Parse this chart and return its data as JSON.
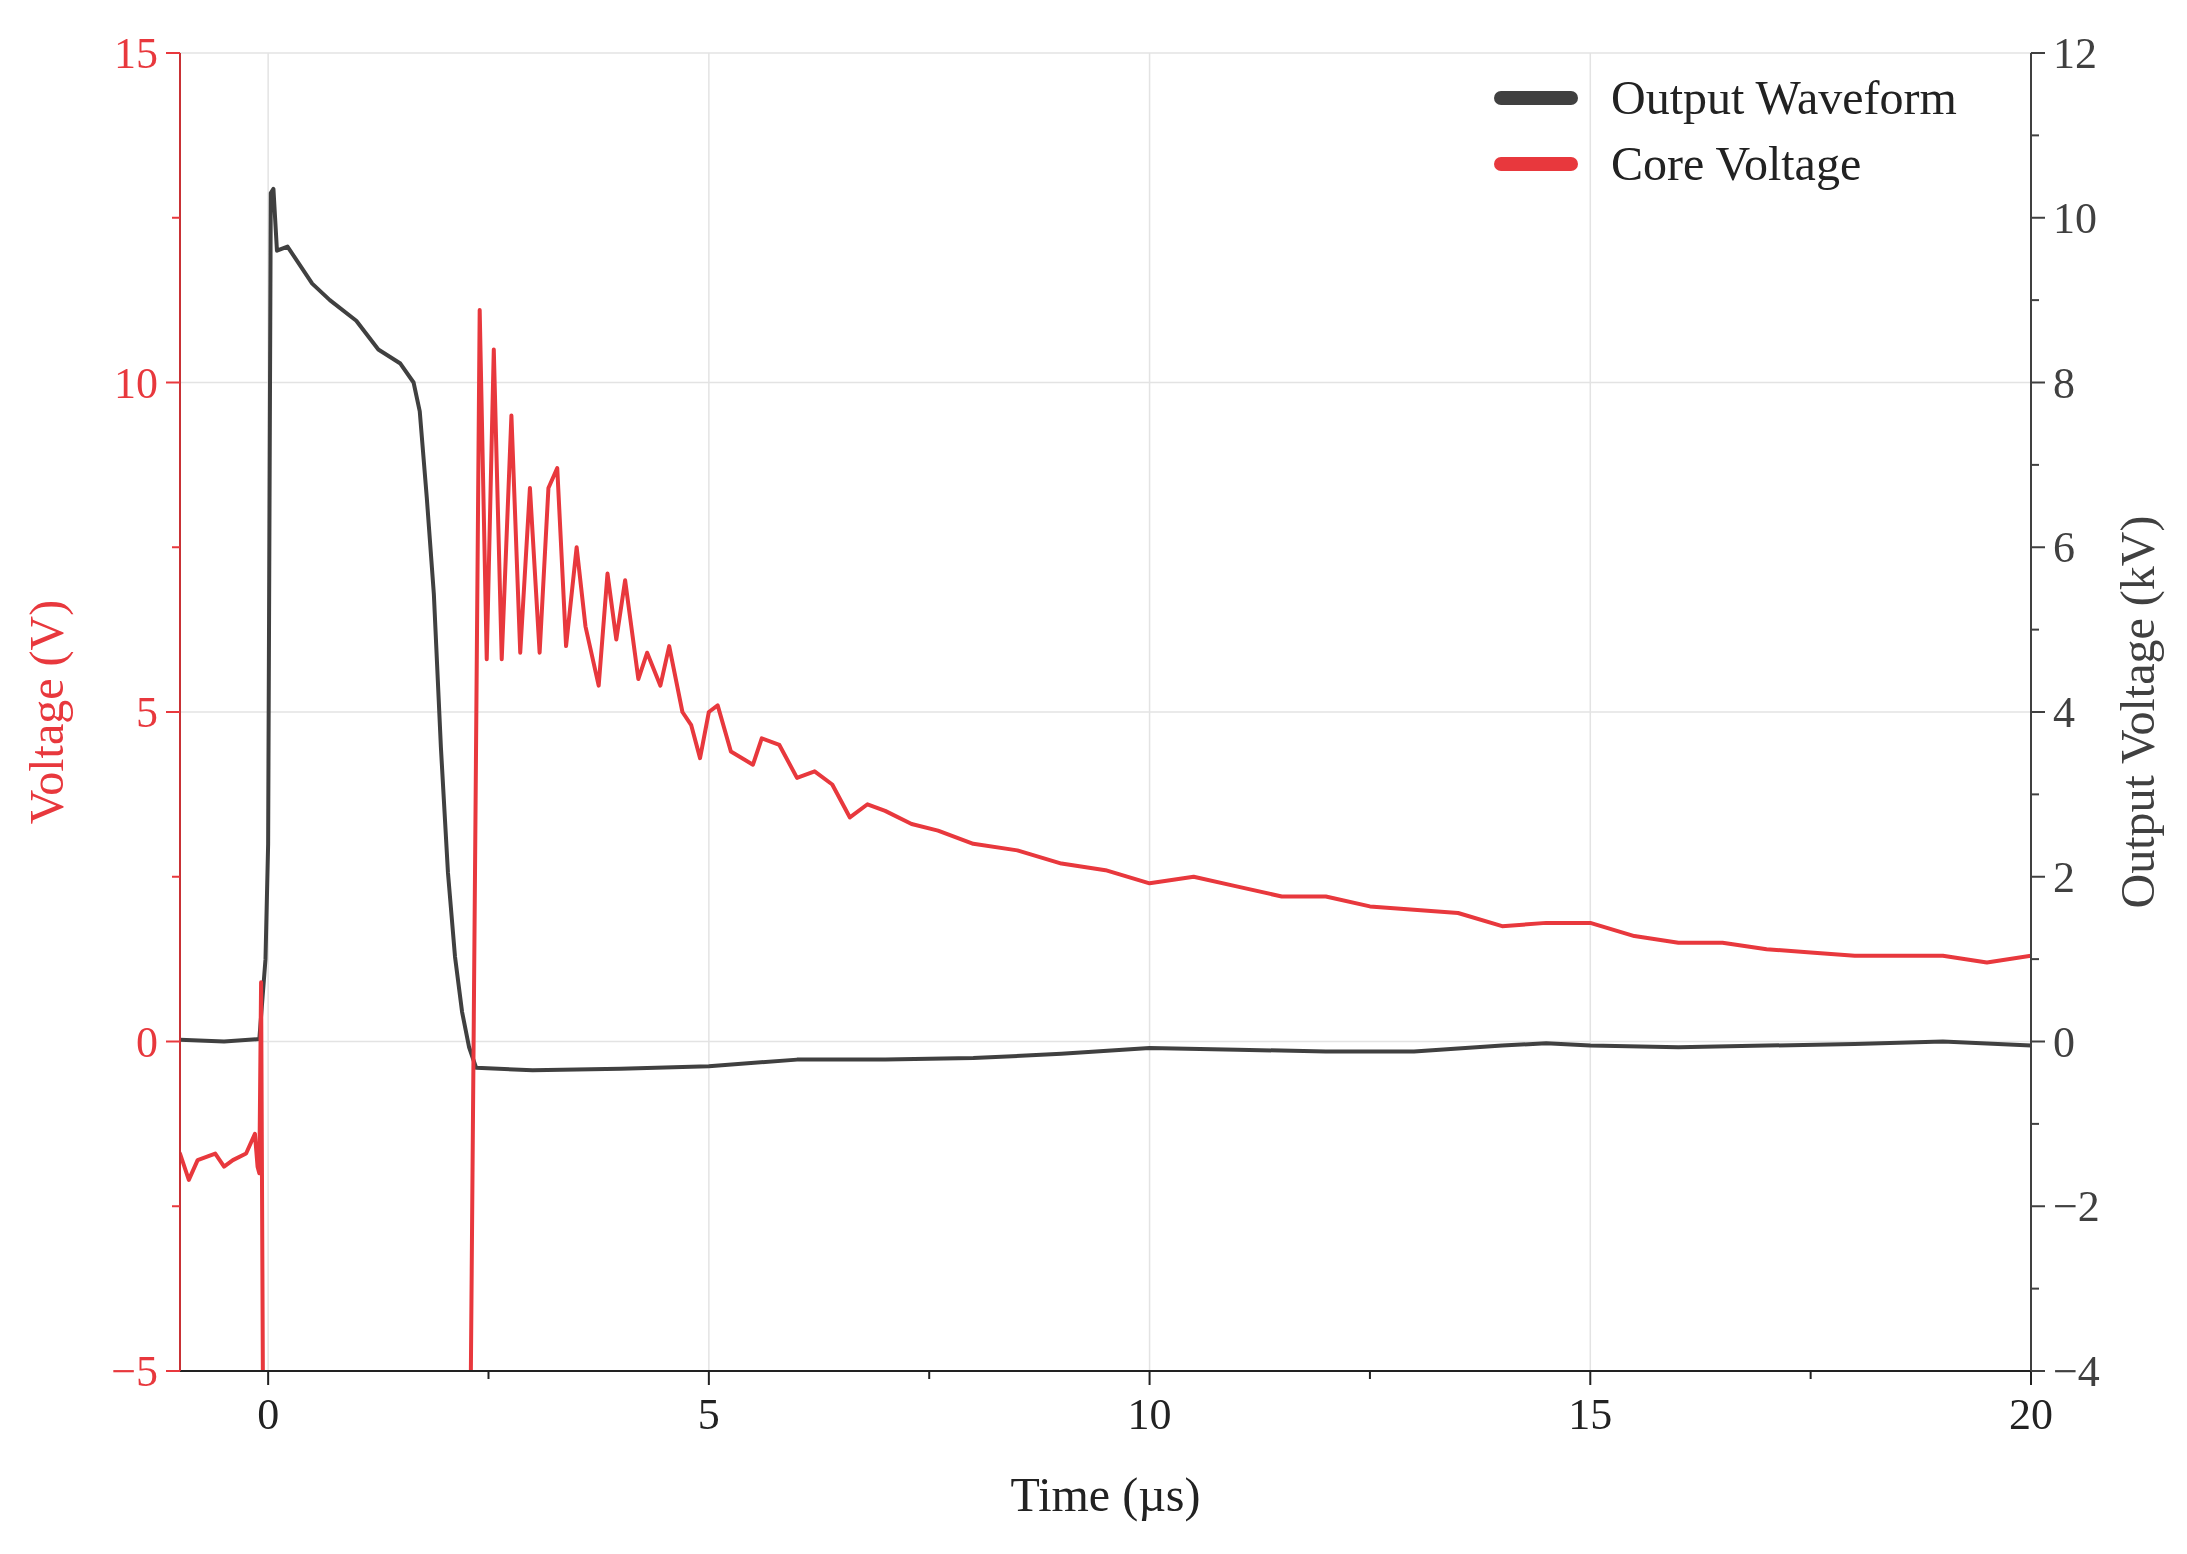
{
  "chart_data": {
    "type": "line",
    "xlabel": "Time (µs)",
    "ylabel": "Voltage (V)",
    "y2label": "Output Voltage (kV)",
    "xlim": [
      -1,
      20
    ],
    "xticks": [
      0,
      {
        "value": 2.5,
        "label": null
      },
      5,
      {
        "value": 7.5,
        "label": null
      },
      10,
      {
        "value": 12.5,
        "label": null
      },
      15,
      {
        "value": 17.5,
        "label": null
      },
      20
    ],
    "ylim": [
      -5,
      15
    ],
    "yticks": [
      -5,
      {
        "value": -2.5,
        "label": null
      },
      0,
      {
        "value": 2.5,
        "label": null
      },
      5,
      {
        "value": 7.5,
        "label": null
      },
      10,
      {
        "value": 12.5,
        "label": null
      },
      15
    ],
    "y2lim": [
      -4,
      12
    ],
    "y2ticks": [
      -4,
      {
        "value": -3,
        "label": null
      },
      -2,
      {
        "value": -1,
        "label": null
      },
      0,
      {
        "value": 1,
        "label": null
      },
      2,
      {
        "value": 3,
        "label": null
      },
      4,
      {
        "value": 5,
        "label": null
      },
      6,
      {
        "value": 7,
        "label": null
      },
      8,
      {
        "value": 9,
        "label": null
      },
      10,
      {
        "value": 11,
        "label": null
      },
      12
    ],
    "grid": true,
    "legend": "top right",
    "line_style": "solid",
    "marker": "none",
    "series": [
      {
        "name": "Output Waveform",
        "color": "#404040",
        "axis": "y2",
        "x": [
          -1,
          -0.5,
          -0.1,
          -0.03,
          0,
          0.03,
          0.06,
          0.1,
          0.22,
          0.5,
          0.7,
          1.0,
          1.25,
          1.5,
          1.65,
          1.72,
          1.8,
          1.88,
          1.96,
          2.04,
          2.12,
          2.2,
          2.28,
          2.36,
          3,
          4,
          5,
          6,
          7,
          8,
          9,
          10,
          11,
          12,
          13,
          14,
          14.5,
          15,
          16,
          17,
          18,
          19,
          20
        ],
        "values": [
          0.02,
          0.0,
          0.03,
          1.0,
          2.4,
          10.3,
          10.35,
          9.6,
          9.65,
          9.2,
          9.0,
          8.75,
          8.4,
          8.23,
          8.0,
          7.65,
          6.6,
          5.43,
          3.57,
          2.05,
          1.03,
          0.36,
          -0.07,
          -0.32,
          -0.35,
          -0.33,
          -0.3,
          -0.22,
          -0.22,
          -0.2,
          -0.15,
          -0.08,
          -0.1,
          -0.12,
          -0.12,
          -0.05,
          -0.02,
          -0.05,
          -0.07,
          -0.05,
          -0.03,
          0.0,
          -0.05
        ]
      },
      {
        "name": "Core Voltage",
        "color": "#e8383d",
        "axis": "y",
        "x": [
          -1,
          -0.9,
          -0.8,
          -0.6,
          -0.5,
          -0.4,
          -0.25,
          -0.15,
          -0.12,
          -0.1,
          -0.08,
          -0.06,
          1.0,
          2.3,
          2.4,
          2.48,
          2.56,
          2.65,
          2.76,
          2.86,
          2.97,
          3.08,
          3.18,
          3.28,
          3.38,
          3.5,
          3.6,
          3.75,
          3.85,
          3.95,
          4.05,
          4.2,
          4.3,
          4.45,
          4.55,
          4.7,
          4.8,
          4.9,
          5.0,
          5.1,
          5.25,
          5.5,
          5.6,
          5.8,
          6.0,
          6.2,
          6.4,
          6.6,
          6.8,
          7.0,
          7.3,
          7.6,
          8.0,
          8.5,
          9.0,
          9.5,
          10,
          10.5,
          11,
          11.5,
          12,
          12.5,
          13,
          13.5,
          14,
          14.5,
          15,
          15.5,
          16,
          16.5,
          17,
          17.5,
          18,
          18.5,
          19,
          19.5,
          20
        ],
        "values": [
          -1.7,
          -2.1,
          -1.8,
          -1.7,
          -1.9,
          -1.8,
          -1.7,
          -1.4,
          -1.9,
          -2.0,
          0.9,
          -5,
          null,
          -5,
          11.1,
          5.8,
          10.5,
          5.8,
          9.5,
          5.9,
          8.4,
          5.9,
          8.4,
          8.7,
          6.0,
          7.5,
          6.3,
          5.4,
          7.1,
          6.1,
          7.0,
          5.5,
          5.9,
          5.4,
          6.0,
          5.0,
          4.8,
          4.3,
          5.0,
          5.1,
          4.4,
          4.2,
          4.6,
          4.5,
          4.0,
          4.1,
          3.9,
          3.4,
          3.6,
          3.5,
          3.3,
          3.2,
          3.0,
          2.9,
          2.7,
          2.6,
          2.4,
          2.5,
          2.35,
          2.2,
          2.2,
          2.05,
          2.0,
          1.95,
          1.75,
          1.8,
          1.8,
          1.6,
          1.5,
          1.5,
          1.4,
          1.35,
          1.3,
          1.3,
          1.3,
          1.2,
          1.3
        ]
      }
    ]
  }
}
